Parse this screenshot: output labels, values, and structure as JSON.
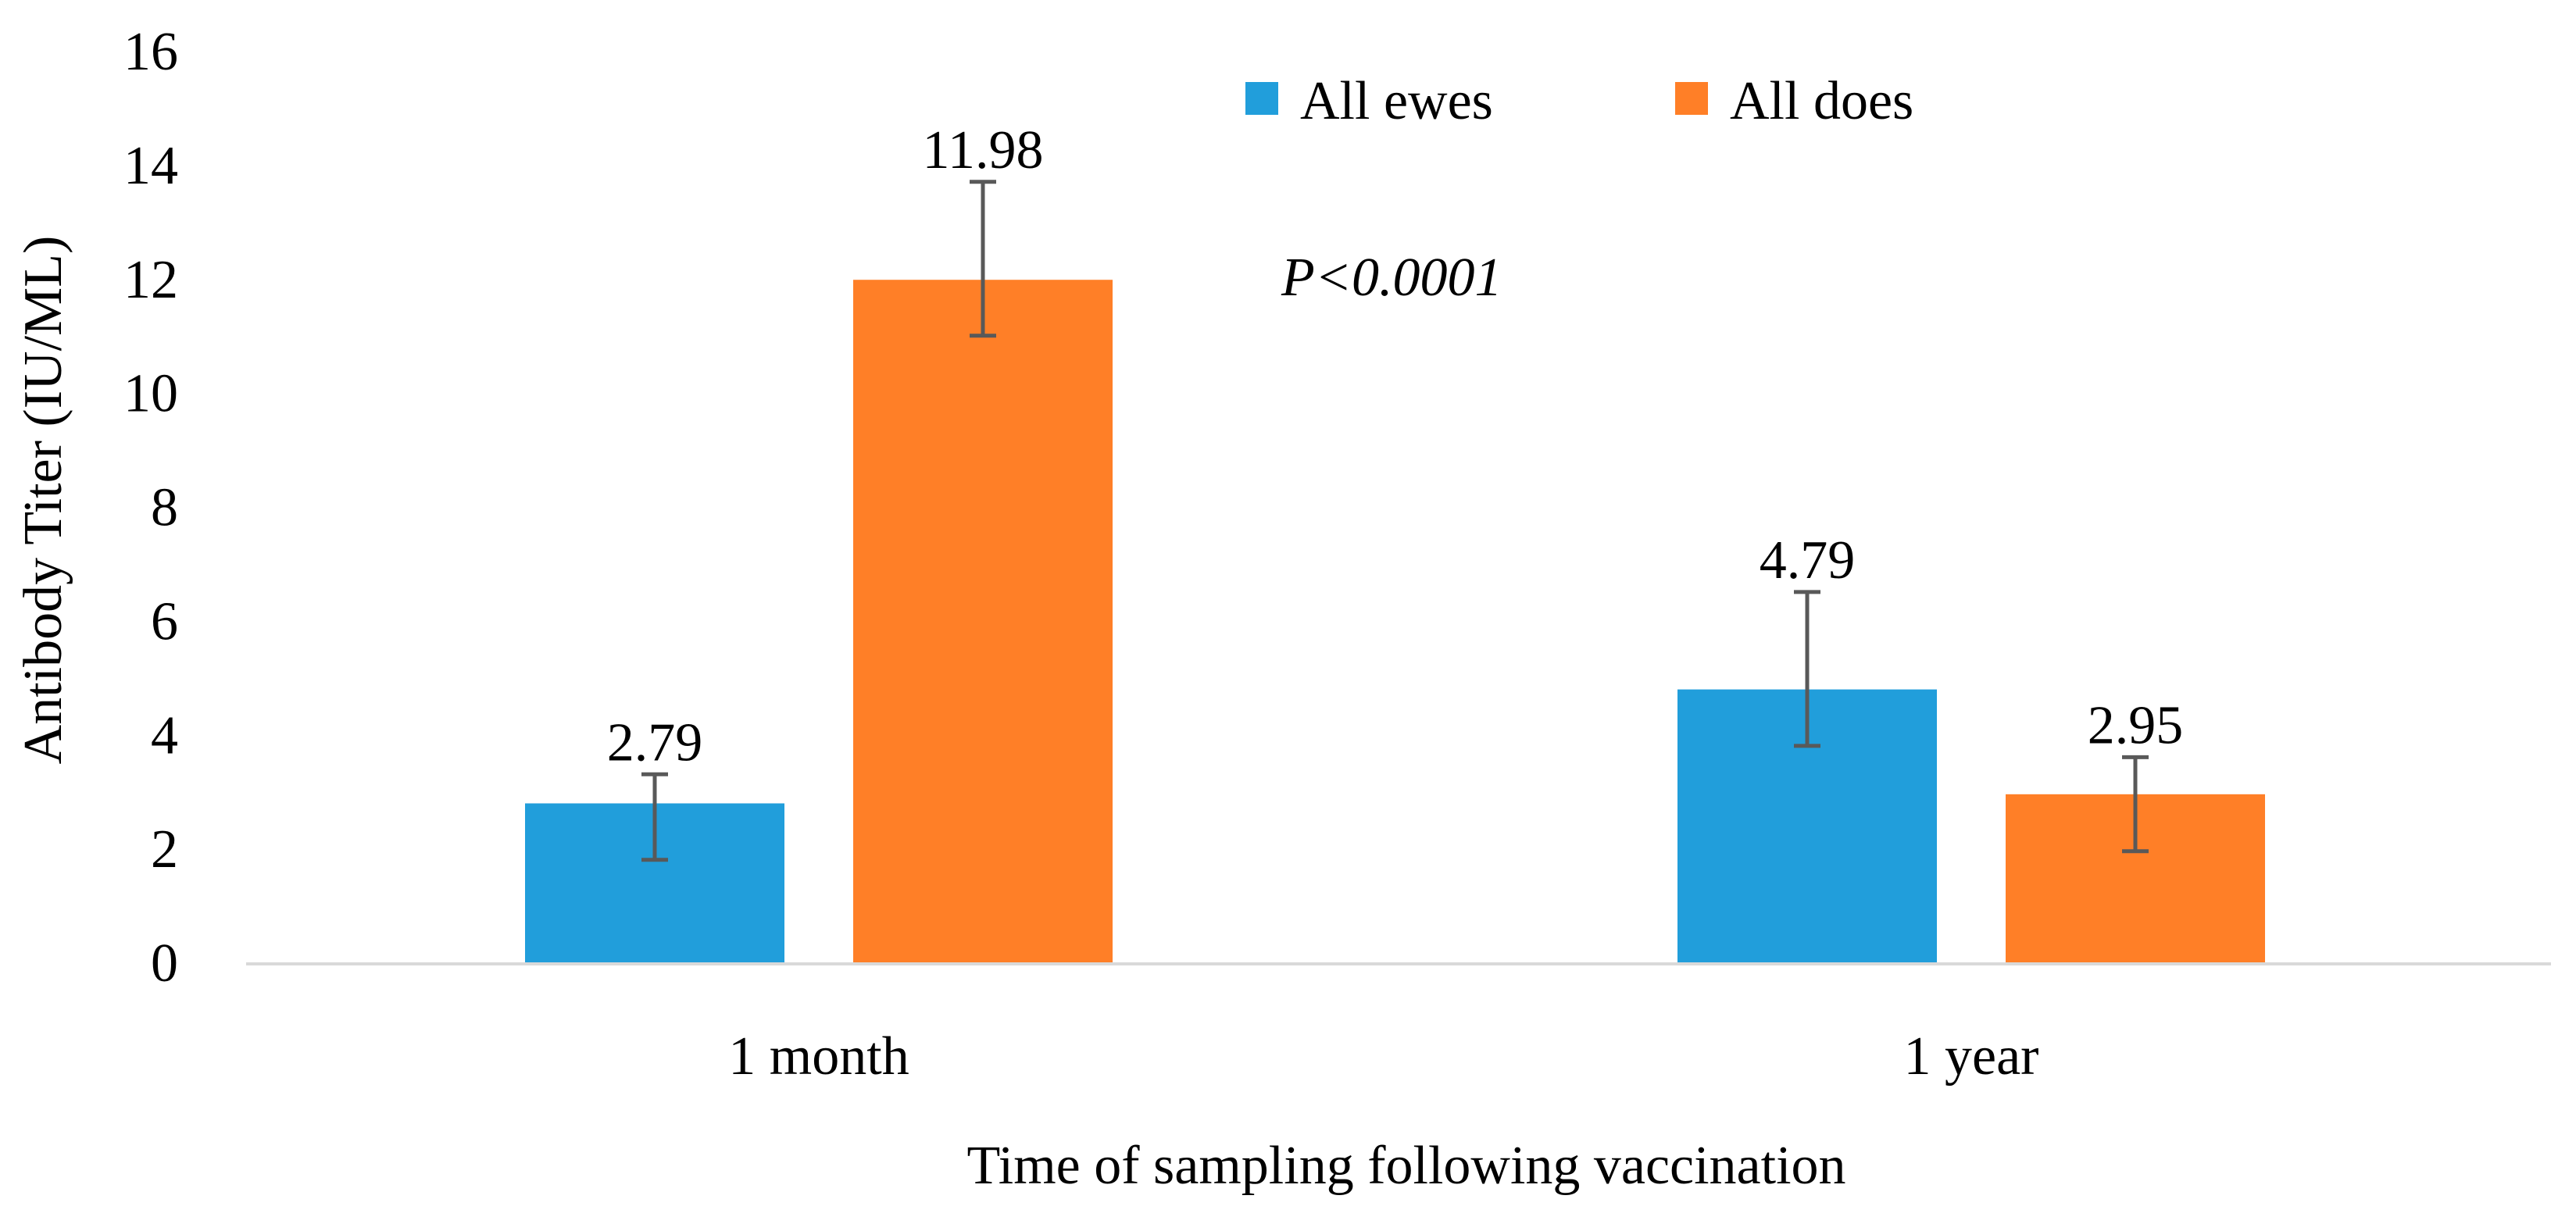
{
  "chart_data": {
    "type": "bar",
    "title": "",
    "xlabel": "Time of sampling following vaccination",
    "ylabel": "Antibody Titer (IU/ML)",
    "ylim": [
      0,
      16
    ],
    "yticks": [
      0,
      2,
      4,
      6,
      8,
      10,
      12,
      14,
      16
    ],
    "categories": [
      "1 month",
      "1 year"
    ],
    "series": [
      {
        "name": "All ewes",
        "color": "#219EDB",
        "values": [
          2.79,
          4.79
        ],
        "labels": [
          "2.79",
          "4.79"
        ],
        "error_low": [
          1.8,
          3.8
        ],
        "error_high": [
          3.3,
          6.5
        ]
      },
      {
        "name": "All does",
        "color": "#FF7F27",
        "values": [
          11.98,
          2.95
        ],
        "labels": [
          "11.98",
          "2.95"
        ],
        "error_low": [
          11.0,
          1.95
        ],
        "error_high": [
          13.7,
          3.6
        ]
      }
    ],
    "annotation": "P<0.0001",
    "legend_position": "top-center",
    "grid": false,
    "axis_color": "#D9D9D9",
    "errorbar_color": "#595959"
  }
}
